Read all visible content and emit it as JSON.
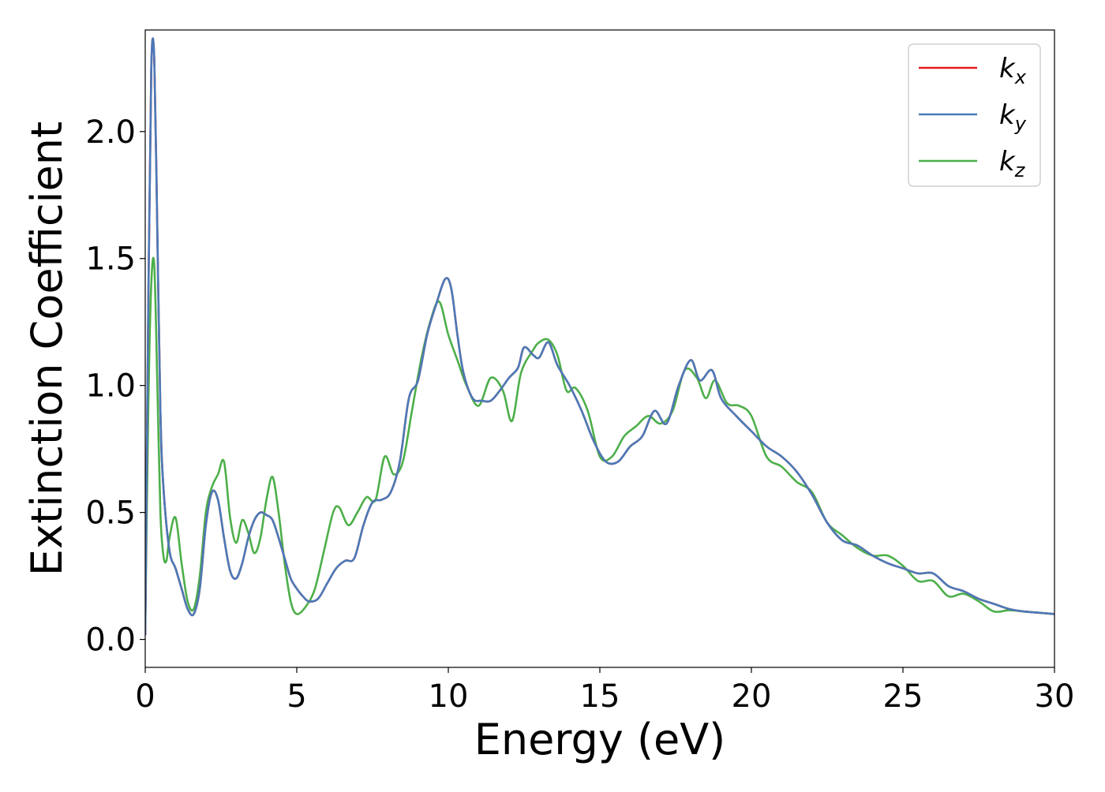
{
  "chart_data": {
    "type": "line",
    "xlabel": "Energy (eV)",
    "ylabel": "Extinction Coefficient",
    "xlim": [
      0,
      30
    ],
    "ylim": [
      -0.11,
      2.4
    ],
    "xticks": [
      0,
      5,
      10,
      15,
      20,
      25,
      30
    ],
    "xtick_labels": [
      "0",
      "5",
      "10",
      "15",
      "20",
      "25",
      "30"
    ],
    "yticks": [
      0.0,
      0.5,
      1.0,
      1.5,
      2.0
    ],
    "ytick_labels": [
      "0.0",
      "0.5",
      "1.0",
      "1.5",
      "2.0"
    ],
    "grid": false,
    "legend_position": "top-right",
    "series": [
      {
        "name": "k_x",
        "label_base": "k",
        "label_sub": "x",
        "color": "#e41a1c",
        "x": [
          0,
          0.1,
          0.2,
          0.3,
          0.4,
          0.5,
          0.6,
          0.8,
          1.0,
          1.2,
          1.4,
          1.6,
          1.8,
          2.0,
          2.2,
          2.4,
          2.6,
          2.8,
          3.0,
          3.2,
          3.4,
          3.6,
          3.8,
          4.0,
          4.2,
          4.4,
          4.6,
          4.8,
          5.0,
          5.2,
          5.4,
          5.7,
          6.0,
          6.3,
          6.6,
          6.9,
          7.2,
          7.5,
          7.8,
          8.1,
          8.4,
          8.7,
          9.0,
          9.3,
          9.6,
          9.9,
          10.1,
          10.3,
          10.5,
          10.8,
          11.1,
          11.4,
          11.7,
          12.0,
          12.3,
          12.5,
          12.8,
          13.0,
          13.3,
          13.6,
          14.0,
          14.4,
          14.8,
          15.2,
          15.6,
          16.0,
          16.4,
          16.8,
          17.2,
          17.6,
          18.0,
          18.3,
          18.7,
          19.0,
          19.5,
          20.0,
          20.5,
          21.0,
          21.5,
          22.0,
          22.5,
          23.0,
          23.5,
          24.0,
          24.5,
          25.0,
          25.5,
          26.0,
          26.5,
          27.0,
          27.5,
          28.0,
          28.5,
          29.0,
          29.5,
          30.0
        ],
        "y": [
          0.02,
          1.3,
          2.25,
          2.28,
          1.6,
          0.9,
          0.6,
          0.35,
          0.28,
          0.2,
          0.12,
          0.1,
          0.2,
          0.45,
          0.58,
          0.55,
          0.4,
          0.27,
          0.24,
          0.3,
          0.4,
          0.47,
          0.5,
          0.49,
          0.47,
          0.4,
          0.32,
          0.24,
          0.2,
          0.17,
          0.15,
          0.16,
          0.22,
          0.28,
          0.31,
          0.32,
          0.45,
          0.54,
          0.55,
          0.58,
          0.7,
          0.95,
          1.02,
          1.2,
          1.32,
          1.42,
          1.38,
          1.2,
          1.05,
          0.95,
          0.94,
          0.94,
          0.98,
          1.03,
          1.07,
          1.15,
          1.12,
          1.11,
          1.17,
          1.08,
          1.0,
          0.9,
          0.78,
          0.7,
          0.7,
          0.76,
          0.8,
          0.9,
          0.85,
          1.0,
          1.1,
          1.02,
          1.06,
          0.95,
          0.88,
          0.82,
          0.76,
          0.72,
          0.66,
          0.57,
          0.46,
          0.39,
          0.37,
          0.33,
          0.3,
          0.28,
          0.26,
          0.26,
          0.21,
          0.19,
          0.16,
          0.14,
          0.12,
          0.11,
          0.105,
          0.1
        ]
      },
      {
        "name": "k_y",
        "label_base": "k",
        "label_sub": "y",
        "color": "#4a7ab8",
        "x": [
          0,
          0.1,
          0.2,
          0.3,
          0.4,
          0.5,
          0.6,
          0.8,
          1.0,
          1.2,
          1.4,
          1.6,
          1.8,
          2.0,
          2.2,
          2.4,
          2.6,
          2.8,
          3.0,
          3.2,
          3.4,
          3.6,
          3.8,
          4.0,
          4.2,
          4.4,
          4.6,
          4.8,
          5.0,
          5.2,
          5.4,
          5.7,
          6.0,
          6.3,
          6.6,
          6.9,
          7.2,
          7.5,
          7.8,
          8.1,
          8.4,
          8.7,
          9.0,
          9.3,
          9.6,
          9.9,
          10.1,
          10.3,
          10.5,
          10.8,
          11.1,
          11.4,
          11.7,
          12.0,
          12.3,
          12.5,
          12.8,
          13.0,
          13.3,
          13.6,
          14.0,
          14.4,
          14.8,
          15.2,
          15.6,
          16.0,
          16.4,
          16.8,
          17.2,
          17.6,
          18.0,
          18.3,
          18.7,
          19.0,
          19.5,
          20.0,
          20.5,
          21.0,
          21.5,
          22.0,
          22.5,
          23.0,
          23.5,
          24.0,
          24.5,
          25.0,
          25.5,
          26.0,
          26.5,
          27.0,
          27.5,
          28.0,
          28.5,
          29.0,
          29.5,
          30.0
        ],
        "y": [
          0.02,
          1.3,
          2.25,
          2.28,
          1.6,
          0.9,
          0.6,
          0.35,
          0.28,
          0.2,
          0.12,
          0.1,
          0.2,
          0.45,
          0.58,
          0.55,
          0.4,
          0.27,
          0.24,
          0.3,
          0.4,
          0.47,
          0.5,
          0.49,
          0.47,
          0.4,
          0.32,
          0.24,
          0.2,
          0.17,
          0.15,
          0.16,
          0.22,
          0.28,
          0.31,
          0.32,
          0.45,
          0.54,
          0.55,
          0.58,
          0.7,
          0.95,
          1.02,
          1.2,
          1.32,
          1.42,
          1.38,
          1.2,
          1.05,
          0.95,
          0.94,
          0.94,
          0.98,
          1.03,
          1.07,
          1.15,
          1.12,
          1.11,
          1.17,
          1.08,
          1.0,
          0.9,
          0.78,
          0.7,
          0.7,
          0.76,
          0.8,
          0.9,
          0.85,
          1.0,
          1.1,
          1.02,
          1.06,
          0.95,
          0.88,
          0.82,
          0.76,
          0.72,
          0.66,
          0.57,
          0.46,
          0.39,
          0.37,
          0.33,
          0.3,
          0.28,
          0.26,
          0.26,
          0.21,
          0.19,
          0.16,
          0.14,
          0.12,
          0.11,
          0.105,
          0.1
        ]
      },
      {
        "name": "k_z",
        "label_base": "k",
        "label_sub": "z",
        "color": "#4daf4a",
        "x": [
          0,
          0.1,
          0.2,
          0.3,
          0.4,
          0.5,
          0.6,
          0.7,
          0.8,
          1.0,
          1.2,
          1.4,
          1.6,
          1.8,
          2.0,
          2.2,
          2.4,
          2.6,
          2.8,
          3.0,
          3.2,
          3.4,
          3.6,
          3.8,
          4.0,
          4.2,
          4.4,
          4.6,
          4.8,
          5.0,
          5.3,
          5.6,
          5.9,
          6.2,
          6.4,
          6.7,
          7.0,
          7.3,
          7.6,
          7.9,
          8.2,
          8.5,
          8.8,
          9.1,
          9.4,
          9.7,
          10.0,
          10.3,
          10.6,
          11.0,
          11.4,
          11.8,
          12.1,
          12.4,
          12.8,
          13.0,
          13.3,
          13.6,
          13.9,
          14.2,
          14.6,
          15.0,
          15.4,
          15.8,
          16.2,
          16.6,
          17.0,
          17.4,
          17.8,
          18.2,
          18.5,
          18.8,
          19.2,
          19.6,
          20.0,
          20.5,
          21.0,
          21.5,
          22.0,
          22.5,
          23.0,
          23.5,
          24.0,
          24.5,
          25.0,
          25.5,
          26.0,
          26.5,
          27.0,
          27.5,
          28.0,
          28.5,
          29.0,
          29.5,
          30.0
        ],
        "y": [
          0.02,
          0.9,
          1.4,
          1.47,
          1.0,
          0.5,
          0.33,
          0.31,
          0.4,
          0.48,
          0.3,
          0.15,
          0.12,
          0.25,
          0.5,
          0.6,
          0.65,
          0.7,
          0.48,
          0.38,
          0.47,
          0.42,
          0.34,
          0.4,
          0.55,
          0.64,
          0.5,
          0.3,
          0.15,
          0.1,
          0.13,
          0.2,
          0.35,
          0.5,
          0.52,
          0.45,
          0.5,
          0.56,
          0.55,
          0.72,
          0.65,
          0.7,
          0.9,
          1.1,
          1.25,
          1.33,
          1.2,
          1.1,
          1.0,
          0.92,
          1.03,
          0.98,
          0.86,
          1.05,
          1.14,
          1.17,
          1.18,
          1.12,
          0.98,
          0.99,
          0.9,
          0.72,
          0.72,
          0.8,
          0.84,
          0.88,
          0.85,
          0.9,
          1.06,
          1.03,
          0.95,
          1.02,
          0.93,
          0.92,
          0.88,
          0.72,
          0.68,
          0.62,
          0.58,
          0.46,
          0.41,
          0.36,
          0.33,
          0.33,
          0.29,
          0.23,
          0.23,
          0.17,
          0.18,
          0.15,
          0.11,
          0.115,
          0.11,
          0.105,
          0.1
        ]
      }
    ]
  }
}
